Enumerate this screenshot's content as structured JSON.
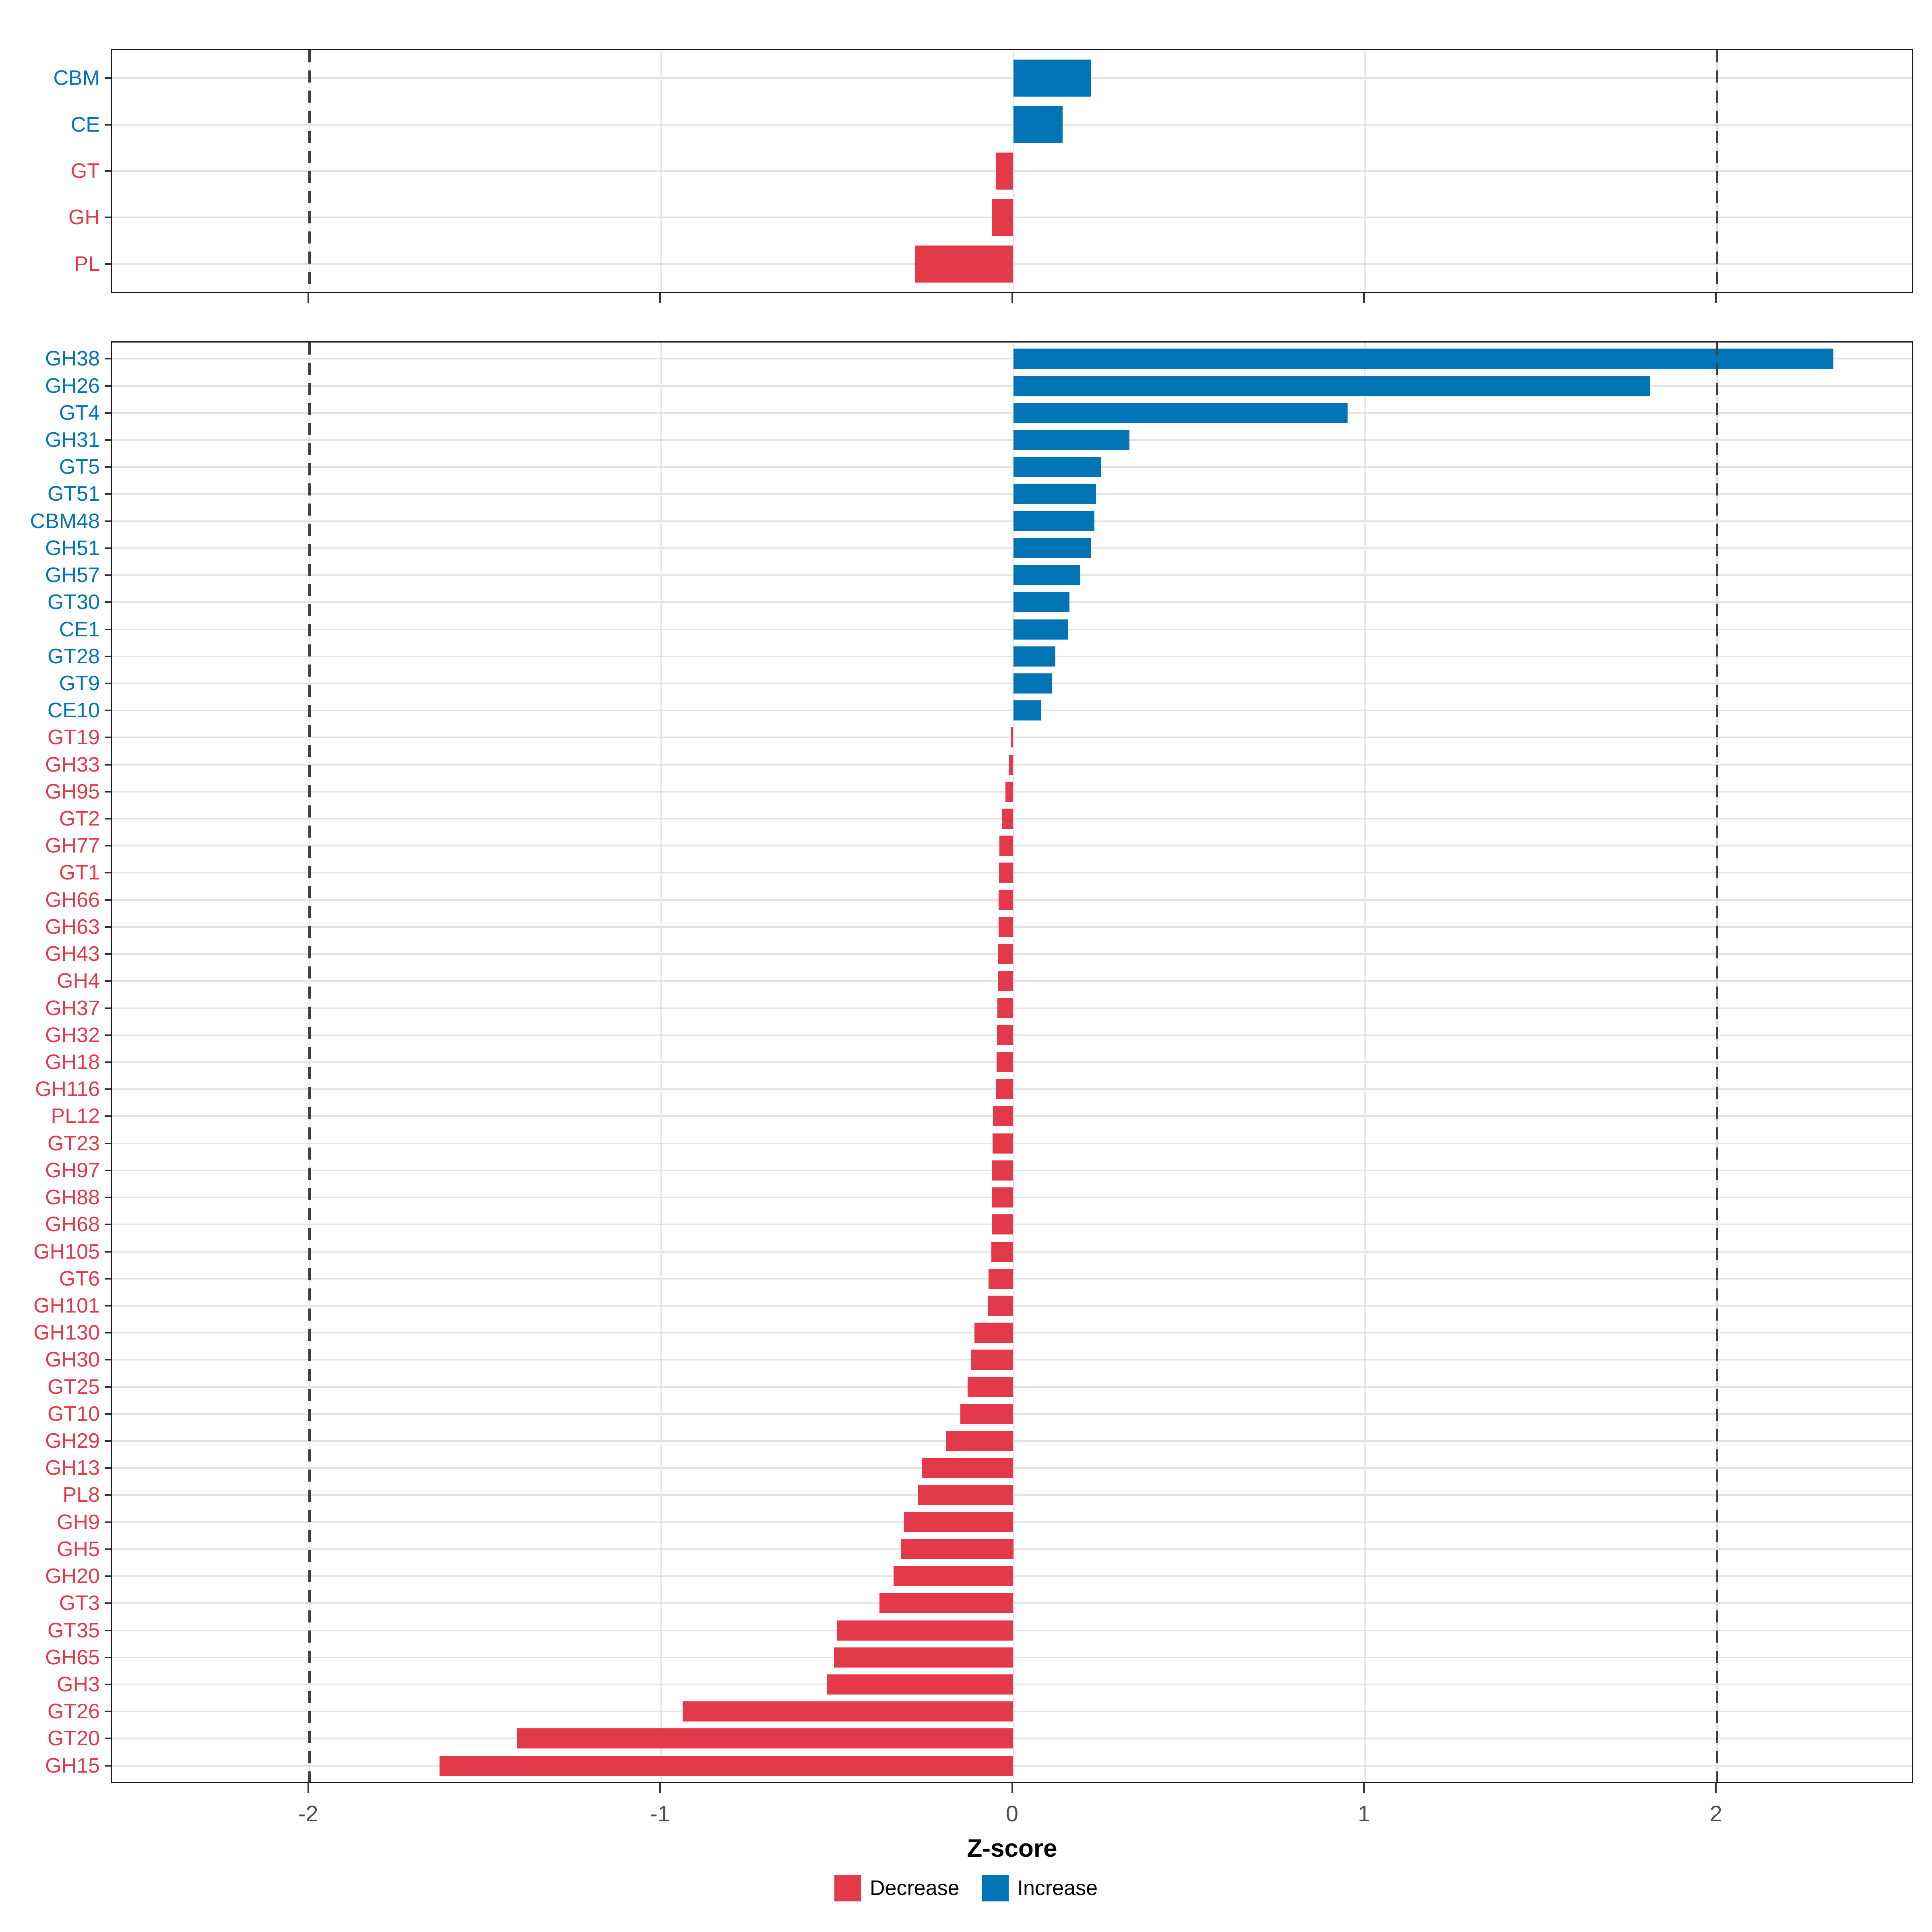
{
  "axis": {
    "title": "Z-score",
    "tick_labels": [
      "-2",
      "-1",
      "0",
      "1",
      "2"
    ],
    "tick_values": [
      -2,
      -1,
      0,
      1,
      2
    ],
    "xlim": [
      -2.56,
      2.56
    ],
    "reference_lines": [
      -2,
      2
    ]
  },
  "legend": {
    "items": [
      {
        "label": "Decrease",
        "color": "#e4394b"
      },
      {
        "label": "Increase",
        "color": "#0074b4"
      }
    ]
  },
  "colors": {
    "increase": "#0074b4",
    "decrease": "#e4394b",
    "gridline": "#e3e3e3",
    "dashed_line": "#3f3f3f",
    "panel_border": "#1a1a1a",
    "tick_text": "#4d4d4d"
  },
  "chart_data": [
    {
      "type": "bar",
      "orientation": "horizontal",
      "panel": "cazyme-classes",
      "title": "",
      "xlabel": "Z-score",
      "xlim": [
        -2.56,
        2.56
      ],
      "grid": true,
      "legend_position": "bottom",
      "categories": [
        "CBM",
        "CE",
        "GT",
        "GH",
        "PL"
      ],
      "values": [
        0.22,
        0.14,
        -0.05,
        -0.06,
        -0.28
      ],
      "directions": [
        "Increase",
        "Increase",
        "Decrease",
        "Decrease",
        "Decrease"
      ]
    },
    {
      "type": "bar",
      "orientation": "horizontal",
      "panel": "cazyme-families",
      "title": "",
      "xlabel": "Z-score",
      "xlim": [
        -2.56,
        2.56
      ],
      "grid": true,
      "legend_position": "bottom",
      "categories": [
        "GH38",
        "GH26",
        "GT4",
        "GH31",
        "GT5",
        "GT51",
        "CBM48",
        "GH51",
        "GH57",
        "GT30",
        "CE1",
        "GT28",
        "GT9",
        "CE10",
        "GT19",
        "GH33",
        "GH95",
        "GT2",
        "GH77",
        "GT1",
        "GH66",
        "GH63",
        "GH43",
        "GH4",
        "GH37",
        "GH32",
        "GH18",
        "GH116",
        "PL12",
        "GT23",
        "GH97",
        "GH88",
        "GH68",
        "GH105",
        "GT6",
        "GH101",
        "GH130",
        "GH30",
        "GT25",
        "GT10",
        "GH29",
        "GH13",
        "PL8",
        "GH9",
        "GH5",
        "GH20",
        "GT3",
        "GT35",
        "GH65",
        "GH3",
        "GT26",
        "GT20",
        "GH15"
      ],
      "values": [
        2.33,
        1.81,
        0.95,
        0.33,
        0.25,
        0.235,
        0.23,
        0.22,
        0.19,
        0.16,
        0.155,
        0.12,
        0.11,
        0.08,
        -0.008,
        -0.012,
        -0.022,
        -0.032,
        -0.04,
        -0.041,
        -0.042,
        -0.042,
        -0.043,
        -0.044,
        -0.045,
        -0.046,
        -0.047,
        -0.05,
        -0.058,
        -0.059,
        -0.06,
        -0.06,
        -0.061,
        -0.062,
        -0.07,
        -0.072,
        -0.11,
        -0.12,
        -0.13,
        -0.15,
        -0.19,
        -0.26,
        -0.27,
        -0.31,
        -0.32,
        -0.34,
        -0.38,
        -0.5,
        -0.51,
        -0.53,
        -0.94,
        -1.41,
        -1.63
      ],
      "directions": [
        "Increase",
        "Increase",
        "Increase",
        "Increase",
        "Increase",
        "Increase",
        "Increase",
        "Increase",
        "Increase",
        "Increase",
        "Increase",
        "Increase",
        "Increase",
        "Increase",
        "Decrease",
        "Decrease",
        "Decrease",
        "Decrease",
        "Decrease",
        "Decrease",
        "Decrease",
        "Decrease",
        "Decrease",
        "Decrease",
        "Decrease",
        "Decrease",
        "Decrease",
        "Decrease",
        "Decrease",
        "Decrease",
        "Decrease",
        "Decrease",
        "Decrease",
        "Decrease",
        "Decrease",
        "Decrease",
        "Decrease",
        "Decrease",
        "Decrease",
        "Decrease",
        "Decrease",
        "Decrease",
        "Decrease",
        "Decrease",
        "Decrease",
        "Decrease",
        "Decrease",
        "Decrease",
        "Decrease",
        "Decrease",
        "Decrease",
        "Decrease",
        "Decrease"
      ]
    }
  ]
}
